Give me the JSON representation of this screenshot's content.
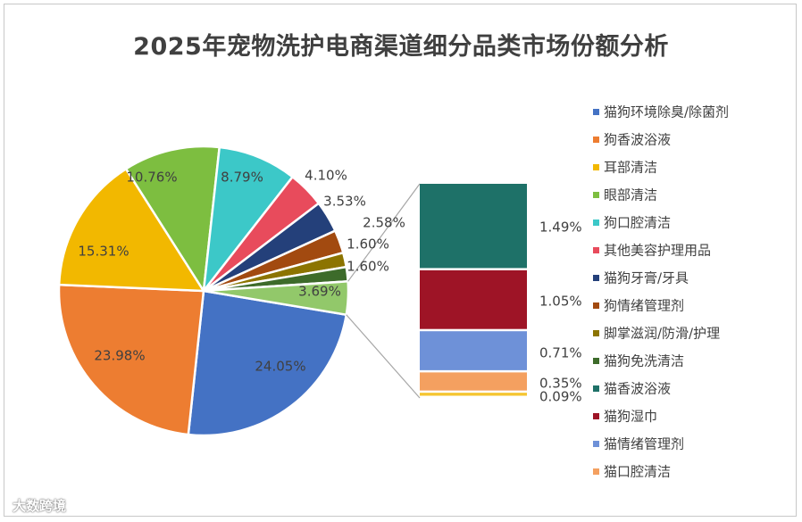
{
  "chart_data": {
    "type": "pie",
    "title": "2025年宠物洗护电商渠道细分品类市场份额分析",
    "slices": [
      {
        "name": "猫狗环境除臭/除菌剂",
        "value": 24.05,
        "color": "#4472C4"
      },
      {
        "name": "狗香波浴液",
        "value": 23.98,
        "color": "#ED7D31"
      },
      {
        "name": "耳部清洁",
        "value": 15.31,
        "color": "#F2B800"
      },
      {
        "name": "眼部清洁",
        "value": 10.76,
        "color": "#7DBE40"
      },
      {
        "name": "狗口腔清洁",
        "value": 8.79,
        "color": "#3CC8C8"
      },
      {
        "name": "其他美容护理用品",
        "value": 4.1,
        "color": "#E84B5C"
      },
      {
        "name": "猫狗牙膏/牙具",
        "value": 3.53,
        "color": "#24407A"
      },
      {
        "name": "狗情绪管理剂",
        "value": 2.58,
        "color": "#A24A10"
      },
      {
        "name": "脚掌滋润/防滑/护理",
        "value": 1.6,
        "color": "#8C7400"
      },
      {
        "name": "猫狗免洗清洁",
        "value": 1.6,
        "color": "#3D6B2A"
      }
    ],
    "other_slice": {
      "value": 3.69,
      "color": "#92C86A"
    },
    "breakdown": [
      {
        "name": "猫香波浴液",
        "value": 1.49,
        "color": "#1E7168"
      },
      {
        "name": "猫狗湿巾",
        "value": 1.05,
        "color": "#9E1426"
      },
      {
        "name": "猫情绪管理剂",
        "value": 0.71,
        "color": "#6E91D8"
      },
      {
        "name": "猫口腔清洁",
        "value": 0.35,
        "color": "#F4A060"
      },
      {
        "name": "",
        "value": 0.09,
        "color": "#F5C531"
      }
    ],
    "labels": {
      "slices": [
        "24.05%",
        "23.98%",
        "15.31%",
        "10.76%",
        "8.79%",
        "4.10%",
        "3.53%",
        "2.58%",
        "1.60%",
        "1.60%"
      ],
      "other": "3.69%",
      "breakdown": [
        "1.49%",
        "1.05%",
        "0.71%",
        "0.35%",
        "0.09%"
      ]
    }
  },
  "watermark": "大数跨境"
}
